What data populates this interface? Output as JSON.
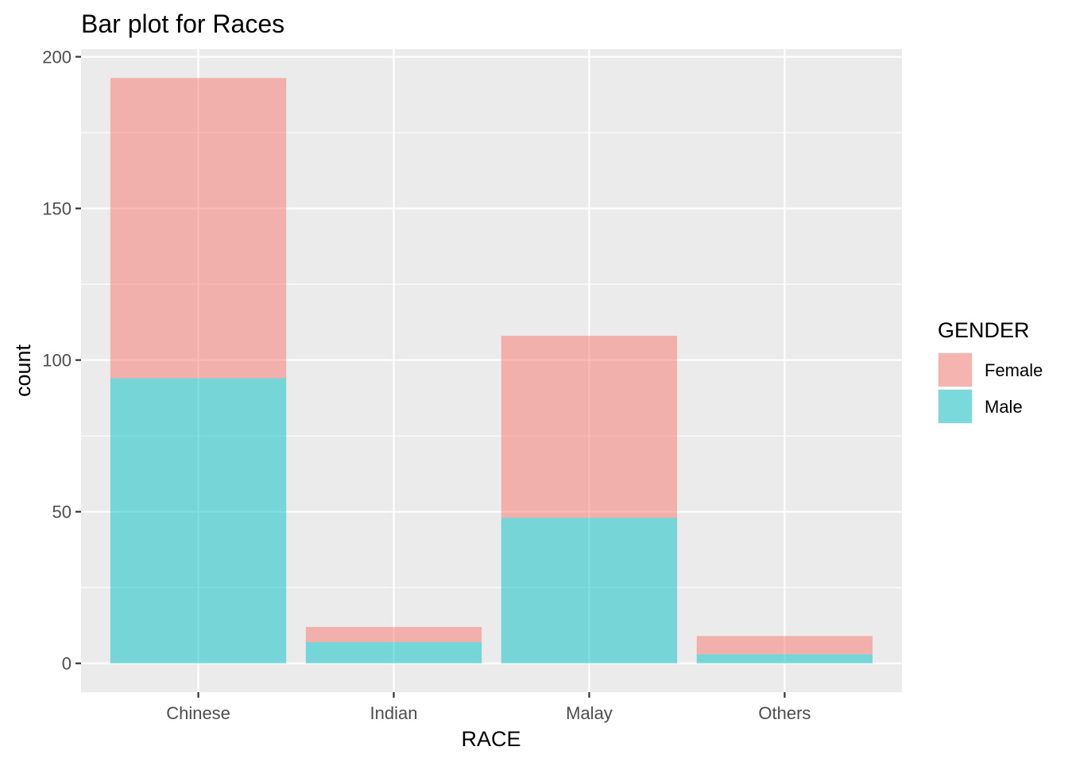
{
  "chart_data": {
    "type": "bar",
    "stacked": true,
    "title": "Bar plot for Races",
    "xlabel": "RACE",
    "ylabel": "count",
    "categories": [
      "Chinese",
      "Indian",
      "Malay",
      "Others"
    ],
    "series": [
      {
        "name": "Female",
        "values": [
          99,
          5,
          60,
          6
        ],
        "color": "#F8766D"
      },
      {
        "name": "Male",
        "values": [
          94,
          7,
          48,
          3
        ],
        "color": "#00BFC4"
      }
    ],
    "stack_order": [
      "Male",
      "Female"
    ],
    "ylim": [
      -9.5,
      202.5
    ],
    "yticks": [
      0,
      50,
      100,
      150,
      200
    ],
    "yticks_labels": [
      "0",
      "50",
      "100",
      "150",
      "200"
    ],
    "grid": true,
    "legend": {
      "title": "GENDER",
      "position": "right"
    }
  }
}
